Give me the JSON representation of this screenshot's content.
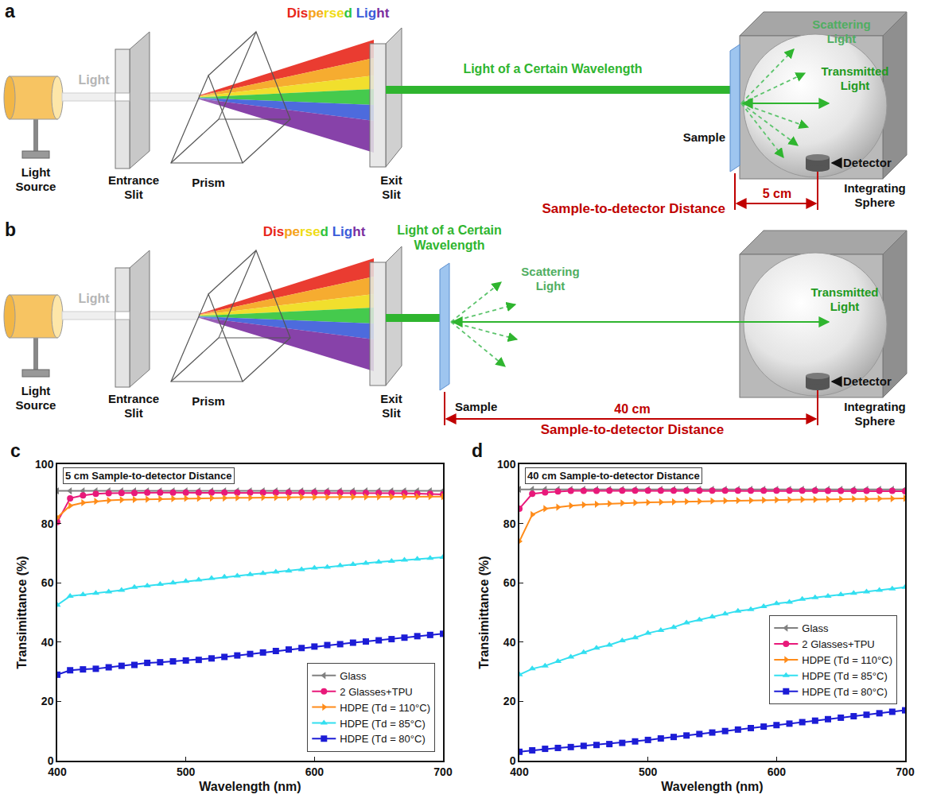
{
  "diagrams": [
    {
      "panel": "a",
      "labels": {
        "light": "Light",
        "light_source": "Light Source",
        "entrance_slit": "Entrance Slit",
        "prism": "Prism",
        "dispersed_light": "Dispersed Light",
        "exit_slit": "Exit Slit",
        "beam": "Light of a Certain Wavelength",
        "scattering": "Scattering Light",
        "transmitted": "Transmitted Light",
        "sample": "Sample",
        "detector": "Detector",
        "sphere": "Integrating Sphere",
        "distance_title": "Sample-to-detector Distance",
        "distance": "5 cm"
      }
    },
    {
      "panel": "b",
      "labels": {
        "light": "Light",
        "light_source": "Light Source",
        "entrance_slit": "Entrance Slit",
        "prism": "Prism",
        "dispersed_light": "Dispersed Light",
        "exit_slit": "Exit Slit",
        "beam": "Light of a Certain Wavelength",
        "scattering": "Scattering Light",
        "transmitted": "Transmitted Light",
        "sample": "Sample",
        "detector": "Detector",
        "sphere": "Integrating Sphere",
        "distance_title": "Sample-to-detector Distance",
        "distance": "40 cm"
      }
    }
  ],
  "chart_data": [
    {
      "type": "line",
      "panel": "c",
      "title": "5 cm Sample-to-detector Distance",
      "x_label": "Wavelength (nm)",
      "y_label": "Transimittance (%)",
      "xlim": [
        400,
        700
      ],
      "xticks": [
        400,
        500,
        600,
        700
      ],
      "ylim": [
        0,
        100
      ],
      "yticks": [
        0,
        20,
        40,
        60,
        80,
        100
      ],
      "grid": false,
      "legend": "bottom right",
      "x": [
        400,
        410,
        420,
        430,
        440,
        450,
        460,
        470,
        480,
        490,
        500,
        510,
        520,
        530,
        540,
        550,
        560,
        570,
        580,
        590,
        600,
        610,
        620,
        630,
        640,
        650,
        660,
        670,
        680,
        690,
        700
      ],
      "series": [
        {
          "name": "Glass",
          "color": "#808080",
          "marker": "triangle-left",
          "values": [
            91,
            91,
            91,
            91,
            91,
            91,
            91,
            91,
            91,
            91,
            91,
            91,
            91,
            91,
            91,
            91,
            91,
            91,
            91,
            91,
            91,
            91,
            91,
            91,
            91,
            91,
            91,
            91,
            91,
            91,
            91
          ]
        },
        {
          "name": "2 Glasses+TPU",
          "color": "#e8197a",
          "marker": "circle",
          "values": [
            80.5,
            88.5,
            89.5,
            90,
            90.2,
            90.3,
            90.3,
            90.4,
            90.4,
            90.4,
            90.4,
            90.4,
            90.4,
            90.4,
            90.4,
            90.4,
            90.4,
            90.4,
            90.4,
            90.4,
            90.4,
            90.4,
            90.4,
            90.3,
            90.3,
            90.3,
            90.2,
            90.2,
            90.1,
            90,
            89.8
          ]
        },
        {
          "name": "HDPE (Td = 110°C)",
          "color": "#ff8c1a",
          "marker": "triangle-right",
          "values": [
            82,
            86,
            87,
            87.5,
            87.8,
            88,
            88.1,
            88.2,
            88.3,
            88.4,
            88.5,
            88.5,
            88.6,
            88.6,
            88.7,
            88.7,
            88.8,
            88.8,
            88.8,
            88.9,
            88.9,
            88.9,
            89,
            89,
            89,
            89,
            89,
            89.1,
            89.1,
            89.1,
            89.1
          ]
        },
        {
          "name": "HDPE (Td = 85°C)",
          "color": "#33dff0",
          "marker": "triangle-up",
          "values": [
            52.5,
            55.5,
            56,
            56.5,
            57,
            57.5,
            58.5,
            59,
            59.5,
            60,
            60.5,
            61,
            61.5,
            62,
            62.3,
            62.8,
            63.2,
            63.7,
            64,
            64.5,
            65,
            65.3,
            65.8,
            66.2,
            66.6,
            67,
            67.3,
            67.7,
            68,
            68.3,
            68.6
          ]
        },
        {
          "name": "HDPE (Td = 80°C)",
          "color": "#1c1cd6",
          "marker": "square",
          "values": [
            29,
            30.5,
            30.8,
            31,
            31.5,
            32,
            32.3,
            33,
            33.2,
            33.5,
            33.8,
            34,
            34.5,
            35,
            35.5,
            36,
            36.5,
            37,
            37.5,
            38,
            38.5,
            39,
            39.3,
            39.8,
            40.2,
            40.6,
            41,
            41.5,
            42,
            42.4,
            42.8
          ]
        }
      ]
    },
    {
      "type": "line",
      "panel": "d",
      "title": "40 cm Sample-to-detector Distance",
      "x_label": "Wavelength (nm)",
      "y_label": "Transimittance (%)",
      "xlim": [
        400,
        700
      ],
      "xticks": [
        400,
        500,
        600,
        700
      ],
      "ylim": [
        0,
        100
      ],
      "yticks": [
        0,
        20,
        40,
        60,
        80,
        100
      ],
      "grid": false,
      "legend": "center right",
      "x": [
        400,
        410,
        420,
        430,
        440,
        450,
        460,
        470,
        480,
        490,
        500,
        510,
        520,
        530,
        540,
        550,
        560,
        570,
        580,
        590,
        600,
        610,
        620,
        630,
        640,
        650,
        660,
        670,
        680,
        690,
        700
      ],
      "series": [
        {
          "name": "Glass",
          "color": "#808080",
          "marker": "triangle-left",
          "values": [
            91.5,
            91.5,
            91.5,
            91.5,
            91.5,
            91.5,
            91.5,
            91.5,
            91.5,
            91.5,
            91.5,
            91.5,
            91.5,
            91.5,
            91.5,
            91.5,
            91.5,
            91.5,
            91.5,
            91.5,
            91.5,
            91.5,
            91.5,
            91.5,
            91.5,
            91.5,
            91.5,
            91.5,
            91.5,
            91.5,
            91.5
          ]
        },
        {
          "name": "2 Glasses+TPU",
          "color": "#e8197a",
          "marker": "circle",
          "values": [
            85,
            90,
            90.5,
            90.8,
            91,
            91,
            91,
            91.1,
            91.1,
            91.1,
            91.1,
            91.1,
            91.1,
            91.1,
            91.1,
            91.1,
            91.1,
            91.1,
            91.1,
            91.1,
            91.1,
            91.1,
            91.1,
            91.1,
            91,
            91,
            91,
            91,
            91,
            91,
            90.9
          ]
        },
        {
          "name": "HDPE (Td = 110°C)",
          "color": "#ff8c1a",
          "marker": "triangle-right",
          "values": [
            74,
            83,
            85,
            85.5,
            86,
            86.3,
            86.5,
            86.7,
            86.9,
            87,
            87.1,
            87.2,
            87.3,
            87.4,
            87.5,
            87.6,
            87.7,
            87.8,
            87.8,
            87.9,
            88,
            88,
            88.1,
            88.1,
            88.2,
            88.2,
            88.3,
            88.3,
            88.4,
            88.4,
            88.5
          ]
        },
        {
          "name": "HDPE (Td = 85°C)",
          "color": "#33dff0",
          "marker": "triangle-up",
          "values": [
            29,
            31,
            32,
            33.5,
            35,
            36.5,
            38,
            39,
            40.5,
            41.5,
            43,
            44,
            45,
            46.5,
            47.5,
            48.5,
            49.5,
            50.5,
            51,
            52,
            53,
            53.5,
            54.5,
            55,
            55.5,
            56,
            56.5,
            57,
            57.5,
            58,
            58.5
          ]
        },
        {
          "name": "HDPE (Td = 80°C)",
          "color": "#1c1cd6",
          "marker": "square",
          "values": [
            3,
            3.5,
            4,
            4.3,
            4.6,
            5,
            5.3,
            5.6,
            6,
            6.5,
            7,
            7.5,
            8,
            8.5,
            9,
            9.5,
            10,
            10.5,
            11,
            11.5,
            12,
            12.5,
            13,
            13.5,
            14,
            14.5,
            15,
            15.5,
            16,
            16.5,
            17
          ]
        }
      ]
    }
  ]
}
